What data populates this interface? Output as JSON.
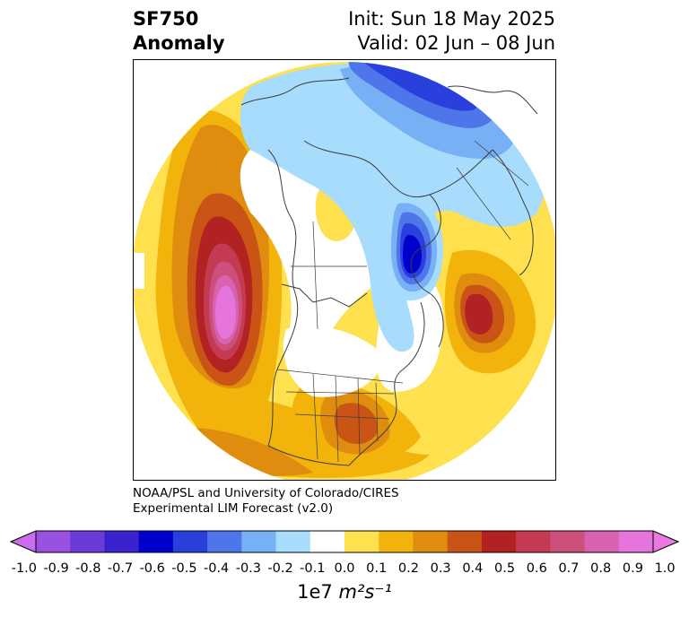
{
  "header": {
    "title_line1": "SF750",
    "title_line2": "Anomaly",
    "init": "Init: Sun 18 May 2025",
    "valid": "Valid: 02 Jun – 08 Jun"
  },
  "credit": {
    "line1": "NOAA/PSL and University of Colorado/CIRES",
    "line2": "Experimental LIM Forecast (v2.0)"
  },
  "colorbar": {
    "ticks": [
      "-1.0",
      "-0.9",
      "-0.8",
      "-0.7",
      "-0.6",
      "-0.5",
      "-0.4",
      "-0.3",
      "-0.2",
      "-0.1",
      "0.0",
      "0.1",
      "0.2",
      "0.3",
      "0.4",
      "0.5",
      "0.6",
      "0.7",
      "0.8",
      "0.9",
      "1.0"
    ],
    "colors": [
      "#9a50e0",
      "#6b3ad8",
      "#3b22cf",
      "#0000cc",
      "#2a40dd",
      "#4e75ea",
      "#78b0f5",
      "#a8dcfd",
      "#ffffff",
      "#ffe04f",
      "#f2b40b",
      "#e08c0e",
      "#c95416",
      "#b32222",
      "#c43a52",
      "#cd4f7b",
      "#d962b0",
      "#e574dc"
    ],
    "under_color": "#cc6cee",
    "over_color": "#ea78e0",
    "units_prefix": "1e7",
    "units": "m²s⁻¹"
  }
}
